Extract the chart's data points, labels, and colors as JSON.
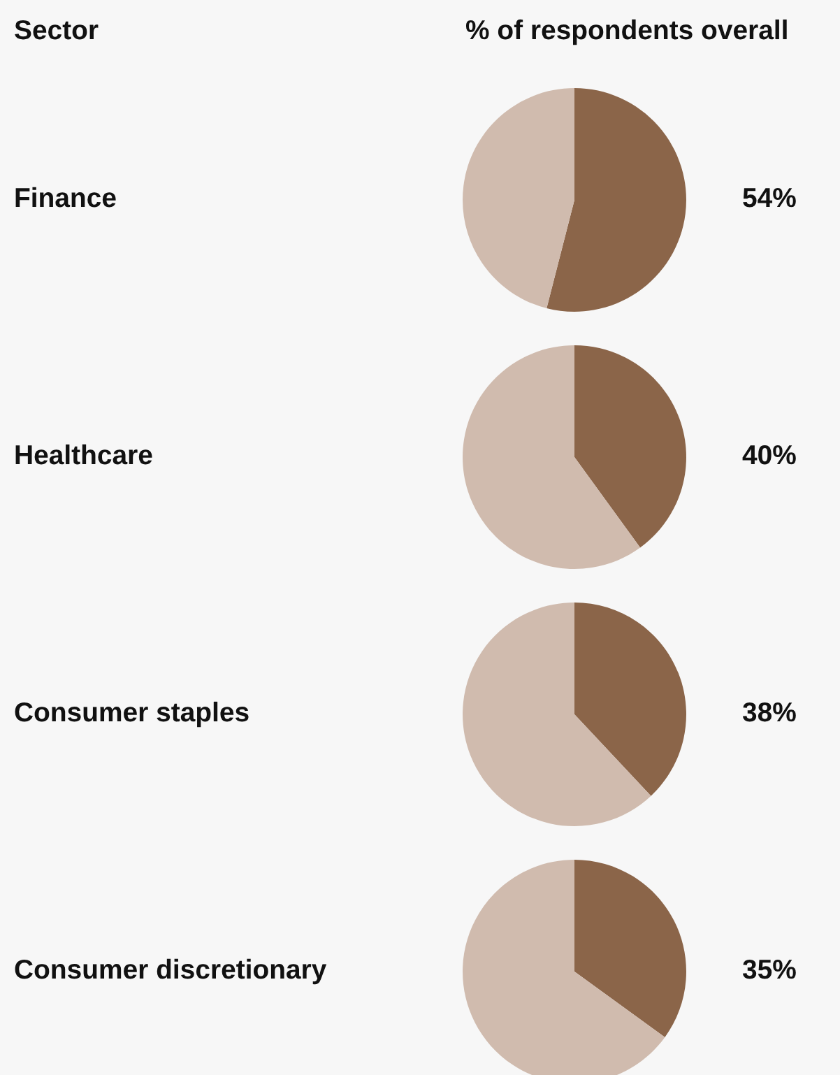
{
  "chart_data": [
    {
      "type": "pie",
      "title": "Finance",
      "categories": [
        null,
        null
      ],
      "values": [
        54,
        46
      ],
      "value_labels": [
        "54%",
        null
      ],
      "colors": [
        "#8b6549",
        "#d0bbae"
      ],
      "annotations": [
        "Sector",
        "% of respondents overall"
      ]
    },
    {
      "type": "pie",
      "title": "Healthcare",
      "categories": [
        null,
        null
      ],
      "values": [
        40,
        60
      ],
      "value_labels": [
        "40%",
        null
      ],
      "colors": [
        "#8b6549",
        "#d0bbae"
      ]
    },
    {
      "type": "pie",
      "title": "Consumer staples",
      "categories": [
        null,
        null
      ],
      "values": [
        38,
        62
      ],
      "value_labels": [
        "38%",
        null
      ],
      "colors": [
        "#8b6549",
        "#d0bbae"
      ]
    },
    {
      "type": "pie",
      "title": "Consumer discretionary",
      "categories": [
        null,
        null
      ],
      "values": [
        35,
        65
      ],
      "value_labels": [
        "35%",
        null
      ],
      "colors": [
        "#8b6549",
        "#d0bbae"
      ]
    }
  ]
}
